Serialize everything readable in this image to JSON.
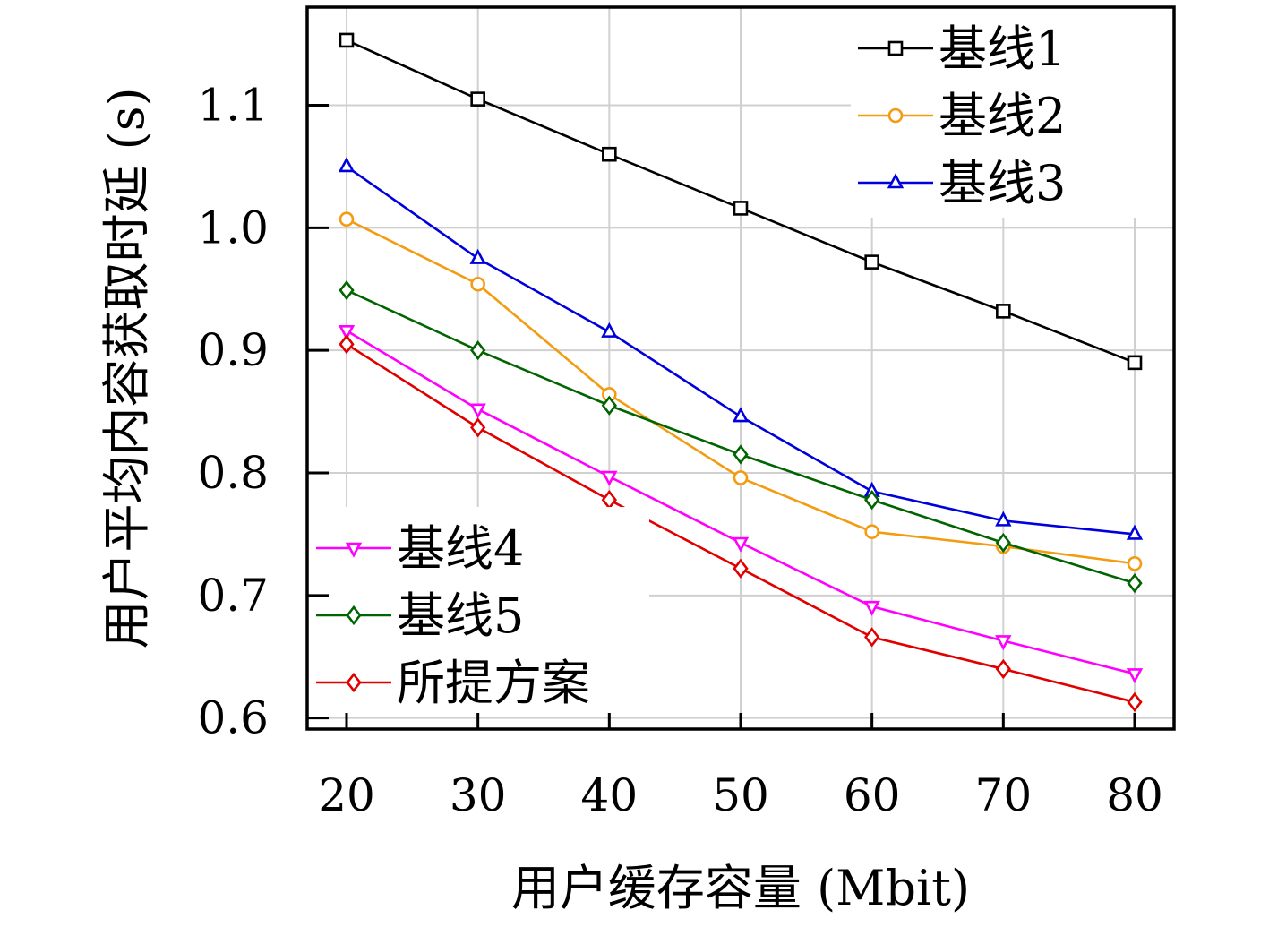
{
  "chart_data": {
    "type": "line",
    "title": "",
    "xlabel": "用户缓存容量 (Mbit)",
    "ylabel": "用户平均内容获取时延 (s)",
    "x": [
      20,
      30,
      40,
      50,
      60,
      70,
      80
    ],
    "xticks": [
      "20",
      "30",
      "40",
      "50",
      "60",
      "70",
      "80"
    ],
    "yticks": [
      {
        "value": 0.6,
        "label": "0.6"
      },
      {
        "value": 0.7,
        "label": "0.7"
      },
      {
        "value": 0.8,
        "label": "0.8"
      },
      {
        "value": 0.9,
        "label": "0.9"
      },
      {
        "value": 1.0,
        "label": "1.0"
      },
      {
        "value": 1.1,
        "label": "1.1"
      }
    ],
    "xlim": [
      17,
      83
    ],
    "ylim": [
      0.591,
      1.18
    ],
    "grid": true,
    "legends": [
      {
        "placement": "top-right",
        "series": [
          0,
          1,
          2
        ]
      },
      {
        "placement": "bottom-left",
        "series": [
          3,
          4,
          5
        ]
      }
    ],
    "series": [
      {
        "name": "基线1",
        "color": "#000000",
        "marker": "square",
        "values": [
          1.153,
          1.105,
          1.06,
          1.016,
          0.972,
          0.932,
          0.89
        ]
      },
      {
        "name": "基线2",
        "color": "#f39c12",
        "marker": "circle",
        "values": [
          1.007,
          0.954,
          0.864,
          0.796,
          0.752,
          0.74,
          0.726
        ]
      },
      {
        "name": "基线3",
        "color": "#0000dd",
        "marker": "triangle-up",
        "values": [
          1.05,
          0.975,
          0.915,
          0.846,
          0.785,
          0.761,
          0.75
        ]
      },
      {
        "name": "基线4",
        "color": "#ff00ff",
        "marker": "triangle-down",
        "values": [
          0.916,
          0.852,
          0.797,
          0.743,
          0.691,
          0.663,
          0.636
        ]
      },
      {
        "name": "基线5",
        "color": "#006400",
        "marker": "diamond",
        "values": [
          0.949,
          0.9,
          0.855,
          0.815,
          0.778,
          0.743,
          0.71
        ]
      },
      {
        "name": "所提方案",
        "color": "#e00000",
        "marker": "diamond",
        "values": [
          0.905,
          0.837,
          0.778,
          0.722,
          0.666,
          0.64,
          0.613
        ]
      }
    ]
  }
}
